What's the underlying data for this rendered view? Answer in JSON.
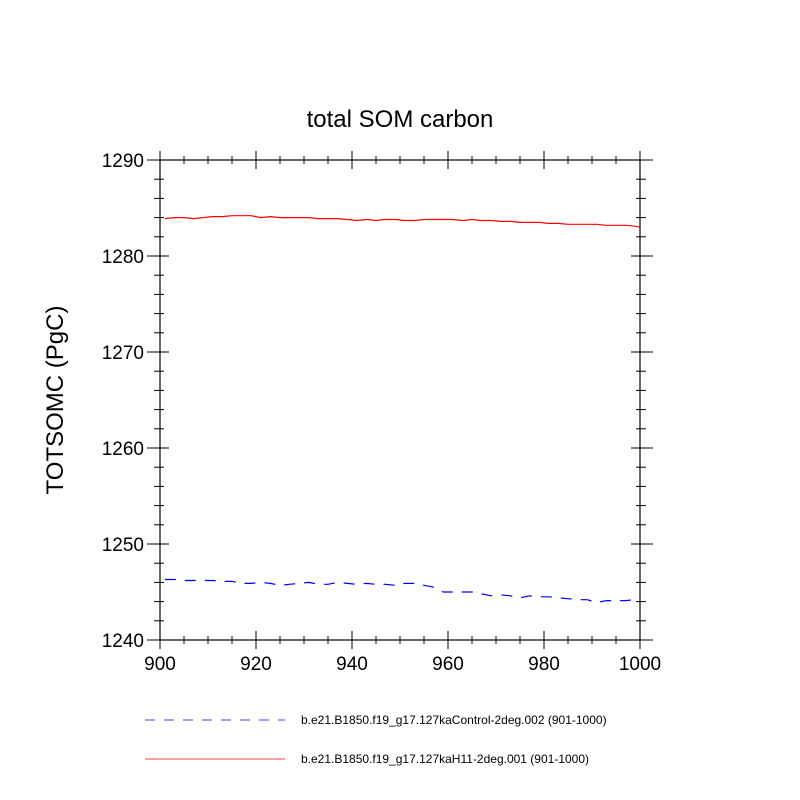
{
  "chart_data": {
    "type": "line",
    "title": "total SOM carbon",
    "xlabel": "",
    "ylabel": "TOTSOMC  (PgC)",
    "xlim": [
      900,
      1000
    ],
    "ylim": [
      1240,
      1290
    ],
    "xticks": [
      900,
      920,
      940,
      960,
      980,
      1000
    ],
    "yticks": [
      1240,
      1250,
      1260,
      1270,
      1280,
      1290
    ],
    "xtick_labels": [
      "900",
      "920",
      "940",
      "960",
      "980",
      "1000"
    ],
    "ytick_labels": [
      "1240",
      "1250",
      "1260",
      "1270",
      "1280",
      "1290"
    ],
    "legend_placement": "bottom",
    "grid": false,
    "series": [
      {
        "name": "b.e21.B1850.f19_g17.127kaControl-2deg.002 (901-1000)",
        "color": "#0000ff",
        "style": "dashed",
        "x": [
          901,
          903,
          905,
          907,
          909,
          911,
          913,
          915,
          917,
          919,
          921,
          923,
          925,
          927,
          929,
          931,
          933,
          935,
          937,
          939,
          941,
          943,
          945,
          947,
          949,
          951,
          953,
          955,
          957,
          959,
          961,
          963,
          965,
          967,
          969,
          971,
          973,
          975,
          977,
          979,
          981,
          983,
          985,
          987,
          989,
          991,
          993,
          995,
          997,
          999,
          1000
        ],
        "y": [
          1246.3,
          1246.3,
          1246.2,
          1246.2,
          1246.2,
          1246.2,
          1246.1,
          1246.1,
          1245.9,
          1245.9,
          1246.0,
          1245.9,
          1245.7,
          1245.8,
          1245.9,
          1246.0,
          1245.8,
          1245.8,
          1246.0,
          1245.9,
          1245.8,
          1245.9,
          1245.8,
          1245.8,
          1245.7,
          1245.9,
          1245.9,
          1245.7,
          1245.5,
          1245.0,
          1245.0,
          1245.0,
          1245.0,
          1244.8,
          1244.6,
          1244.7,
          1244.6,
          1244.4,
          1244.6,
          1244.5,
          1244.5,
          1244.4,
          1244.3,
          1244.2,
          1244.2,
          1243.9,
          1244.1,
          1244.1,
          1244.1,
          1244.2,
          1244.2
        ]
      },
      {
        "name": "b.e21.B1850.f19_g17.127kaH11-2deg.001 (901-1000)",
        "color": "#ff0000",
        "style": "solid",
        "x": [
          901,
          903,
          905,
          907,
          909,
          911,
          913,
          915,
          917,
          919,
          921,
          923,
          925,
          927,
          929,
          931,
          933,
          935,
          937,
          939,
          941,
          943,
          945,
          947,
          949,
          951,
          953,
          955,
          957,
          959,
          961,
          963,
          965,
          967,
          969,
          971,
          973,
          975,
          977,
          979,
          981,
          983,
          985,
          987,
          989,
          991,
          993,
          995,
          997,
          999,
          1000
        ],
        "y": [
          1283.9,
          1284.0,
          1284.0,
          1283.9,
          1284.0,
          1284.1,
          1284.1,
          1284.2,
          1284.2,
          1284.2,
          1284.0,
          1284.1,
          1284.0,
          1284.0,
          1284.0,
          1284.0,
          1283.9,
          1283.9,
          1283.9,
          1283.8,
          1283.7,
          1283.8,
          1283.7,
          1283.8,
          1283.8,
          1283.7,
          1283.7,
          1283.8,
          1283.8,
          1283.8,
          1283.8,
          1283.7,
          1283.8,
          1283.7,
          1283.7,
          1283.6,
          1283.6,
          1283.5,
          1283.5,
          1283.5,
          1283.4,
          1283.4,
          1283.3,
          1283.3,
          1283.3,
          1283.3,
          1283.2,
          1283.2,
          1283.2,
          1283.1,
          1283.0
        ]
      }
    ]
  }
}
